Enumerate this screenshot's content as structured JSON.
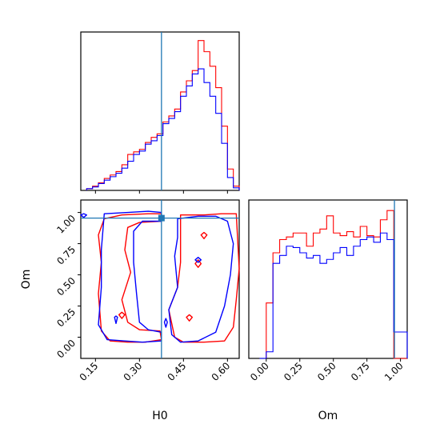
{
  "chart_data": {
    "type": "corner",
    "parameters": [
      "H0",
      "Om"
    ],
    "truth": {
      "H0": 0.375,
      "Om": 0.955
    },
    "colors": {
      "series_a": "#ff0000",
      "series_b": "#0000ff",
      "truth": "#1f77b4"
    },
    "panels": [
      {
        "id": "h0-hist",
        "type": "step-histogram",
        "xlim": [
          0.1,
          0.64
        ],
        "bin_edges": [
          0.12,
          0.14,
          0.16,
          0.18,
          0.2,
          0.22,
          0.24,
          0.26,
          0.28,
          0.3,
          0.32,
          0.34,
          0.36,
          0.38,
          0.4,
          0.42,
          0.44,
          0.46,
          0.48,
          0.5,
          0.52,
          0.54,
          0.56,
          0.58,
          0.6,
          0.62,
          0.64
        ],
        "ylim": [
          0,
          185
        ],
        "series": [
          {
            "name": "",
            "color": "#ff0000",
            "counts": [
              2,
              5,
              9,
              14,
              18,
              22,
              30,
              42,
              45,
              48,
              56,
              62,
              66,
              80,
              87,
              95,
              115,
              128,
              140,
              175,
              162,
              145,
              120,
              75,
              25,
              5
            ]
          },
          {
            "name": "",
            "color": "#0000ff",
            "counts": [
              2,
              4,
              8,
              12,
              16,
              20,
              26,
              34,
              42,
              46,
              54,
              58,
              64,
              78,
              84,
              92,
              110,
              122,
              136,
              142,
              126,
              110,
              90,
              55,
              15,
              3
            ]
          }
        ]
      },
      {
        "id": "om-h0-contour",
        "type": "contour",
        "xlim": [
          0.1,
          0.64
        ],
        "ylim": [
          -0.17,
          1.1
        ],
        "xlabel": "H0",
        "ylabel": "Om",
        "xticks": [
          "0.15",
          "0.30",
          "0.45",
          "0.60"
        ],
        "yticks": [
          "0.00",
          "0.25",
          "0.50",
          "0.75",
          "1.00"
        ],
        "series": [
          {
            "name": "",
            "color": "#ff0000",
            "levels": [
              [
                [
                  0.18,
                  0.95
                ],
                [
                  0.24,
                  0.98
                ],
                [
                  0.33,
                  0.99
                ],
                [
                  0.375,
                  0.99
                ],
                [
                  0.375,
                  0.93
                ],
                [
                  0.3,
                  0.92
                ],
                [
                  0.26,
                  0.88
                ],
                [
                  0.25,
                  0.7
                ],
                [
                  0.27,
                  0.52
                ],
                [
                  0.24,
                  0.3
                ],
                [
                  0.26,
                  0.12
                ],
                [
                  0.3,
                  0.06
                ],
                [
                  0.37,
                  0.05
                ],
                [
                  0.375,
                  -0.02
                ],
                [
                  0.32,
                  -0.04
                ],
                [
                  0.26,
                  -0.04
                ],
                [
                  0.2,
                  -0.03
                ],
                [
                  0.17,
                  0.05
                ],
                [
                  0.16,
                  0.35
                ],
                [
                  0.17,
                  0.6
                ],
                [
                  0.16,
                  0.82
                ],
                [
                  0.18,
                  0.95
                ]
              ],
              [
                [
                  0.44,
                  0.98
                ],
                [
                  0.52,
                  0.98
                ],
                [
                  0.58,
                  0.99
                ],
                [
                  0.63,
                  0.99
                ],
                [
                  0.64,
                  0.55
                ],
                [
                  0.63,
                  0.3
                ],
                [
                  0.62,
                  0.08
                ],
                [
                  0.59,
                  -0.03
                ],
                [
                  0.52,
                  -0.04
                ],
                [
                  0.45,
                  -0.04
                ],
                [
                  0.42,
                  0.0
                ],
                [
                  0.4,
                  0.22
                ],
                [
                  0.43,
                  0.4
                ],
                [
                  0.44,
                  0.6
                ],
                [
                  0.44,
                  0.8
                ],
                [
                  0.44,
                  0.98
                ]
              ],
              [
                [
                  0.52,
                  0.84
                ],
                [
                  0.53,
                  0.82
                ],
                [
                  0.52,
                  0.79
                ],
                [
                  0.51,
                  0.82
                ],
                [
                  0.52,
                  0.84
                ]
              ],
              [
                [
                  0.5,
                  0.62
                ],
                [
                  0.51,
                  0.59
                ],
                [
                  0.5,
                  0.56
                ],
                [
                  0.49,
                  0.59
                ],
                [
                  0.5,
                  0.62
                ]
              ],
              [
                [
                  0.24,
                  0.2
                ],
                [
                  0.25,
                  0.18
                ],
                [
                  0.24,
                  0.15
                ],
                [
                  0.23,
                  0.18
                ],
                [
                  0.24,
                  0.2
                ]
              ],
              [
                [
                  0.47,
                  0.18
                ],
                [
                  0.48,
                  0.16
                ],
                [
                  0.47,
                  0.13
                ],
                [
                  0.46,
                  0.16
                ],
                [
                  0.47,
                  0.18
                ]
              ]
            ]
          },
          {
            "name": "",
            "color": "#0000ff",
            "levels": [
              [
                [
                  0.18,
                  0.99
                ],
                [
                  0.26,
                  1.0
                ],
                [
                  0.33,
                  1.01
                ],
                [
                  0.375,
                  1.0
                ],
                [
                  0.375,
                  0.93
                ],
                [
                  0.31,
                  0.93
                ],
                [
                  0.28,
                  0.85
                ],
                [
                  0.28,
                  0.6
                ],
                [
                  0.29,
                  0.35
                ],
                [
                  0.3,
                  0.12
                ],
                [
                  0.33,
                  0.06
                ],
                [
                  0.375,
                  0.04
                ],
                [
                  0.375,
                  -0.03
                ],
                [
                  0.31,
                  -0.04
                ],
                [
                  0.25,
                  -0.03
                ],
                [
                  0.19,
                  -0.02
                ],
                [
                  0.16,
                  0.1
                ],
                [
                  0.17,
                  0.4
                ],
                [
                  0.17,
                  0.7
                ],
                [
                  0.18,
                  0.99
                ]
              ],
              [
                [
                  0.43,
                  0.95
                ],
                [
                  0.5,
                  0.97
                ],
                [
                  0.56,
                  0.97
                ],
                [
                  0.6,
                  0.93
                ],
                [
                  0.62,
                  0.75
                ],
                [
                  0.61,
                  0.5
                ],
                [
                  0.59,
                  0.25
                ],
                [
                  0.56,
                  0.04
                ],
                [
                  0.5,
                  -0.03
                ],
                [
                  0.44,
                  -0.04
                ],
                [
                  0.41,
                  0.02
                ],
                [
                  0.4,
                  0.22
                ],
                [
                  0.43,
                  0.4
                ],
                [
                  0.42,
                  0.65
                ],
                [
                  0.43,
                  0.8
                ],
                [
                  0.43,
                  0.95
                ]
              ],
              [
                [
                  0.11,
                  0.99
                ],
                [
                  0.12,
                  0.98
                ],
                [
                  0.11,
                  0.96
                ],
                [
                  0.1,
                  0.98
                ],
                [
                  0.11,
                  0.99
                ]
              ],
              [
                [
                  0.22,
                  0.17
                ],
                [
                  0.225,
                  0.16
                ],
                [
                  0.22,
                  0.11
                ],
                [
                  0.215,
                  0.16
                ],
                [
                  0.22,
                  0.17
                ]
              ],
              [
                [
                  0.39,
                  0.15
                ],
                [
                  0.395,
                  0.12
                ],
                [
                  0.39,
                  0.08
                ],
                [
                  0.385,
                  0.12
                ],
                [
                  0.39,
                  0.15
                ]
              ],
              [
                [
                  0.5,
                  0.64
                ],
                [
                  0.51,
                  0.62
                ],
                [
                  0.5,
                  0.6
                ],
                [
                  0.49,
                  0.62
                ],
                [
                  0.5,
                  0.64
                ]
              ]
            ]
          }
        ]
      },
      {
        "id": "om-hist",
        "type": "step-histogram",
        "xlim": [
          -0.13,
          1.05
        ],
        "bin_edges": [
          -0.05,
          0.0,
          0.05,
          0.1,
          0.15,
          0.2,
          0.25,
          0.3,
          0.35,
          0.4,
          0.45,
          0.5,
          0.55,
          0.6,
          0.65,
          0.7,
          0.75,
          0.8,
          0.85,
          0.9,
          0.95,
          1.0,
          1.05
        ],
        "ylim": [
          0,
          120
        ],
        "xlabel": "Om",
        "xticks": [
          "0.00",
          "0.25",
          "0.50",
          "0.75",
          "1.00"
        ],
        "series": [
          {
            "name": "",
            "color": "#ff0000",
            "counts": [
              0,
              42,
              80,
              90,
              92,
              95,
              95,
              85,
              95,
              98,
              108,
              95,
              93,
              96,
              92,
              100,
              93,
              92,
              105,
              112,
              0,
              0
            ]
          },
          {
            "name": "",
            "color": "#0000ff",
            "counts": [
              0,
              5,
              72,
              78,
              85,
              84,
              80,
              76,
              78,
              72,
              75,
              80,
              84,
              78,
              85,
              90,
              92,
              88,
              95,
              90,
              20,
              20
            ]
          }
        ]
      }
    ]
  }
}
